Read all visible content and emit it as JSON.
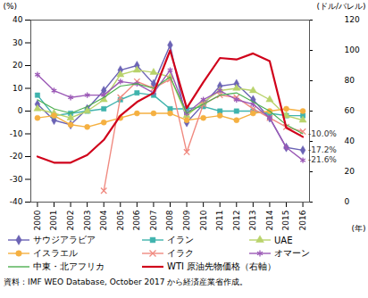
{
  "chart_data": {
    "type": "line",
    "x": [
      2000,
      2001,
      2002,
      2003,
      2004,
      2005,
      2006,
      2007,
      2008,
      2009,
      2010,
      2011,
      2012,
      2013,
      2014,
      2015,
      2016
    ],
    "xlim": [
      1999.6,
      2016.4
    ],
    "xticks": [
      2000,
      2001,
      2002,
      2003,
      2004,
      2005,
      2006,
      2007,
      2008,
      2009,
      2010,
      2011,
      2012,
      2013,
      2014,
      2015,
      2016
    ],
    "xlabel": "(年)",
    "ylabel": "(%)",
    "ylim": [
      -40,
      40
    ],
    "yticks": [
      -40,
      -30,
      -20,
      -10,
      0,
      10,
      20,
      30,
      40
    ],
    "y2label": "(ドル/バレル)",
    "y2lim": [
      0,
      120
    ],
    "y2ticks": [
      0,
      20,
      40,
      60,
      80,
      100,
      120
    ],
    "legend": "bottom",
    "series": [
      {
        "name": "サウジアラビア",
        "color": "#6b63b5",
        "marker": "diamond",
        "line_style": "solid",
        "values": [
          3,
          -4,
          -6,
          1,
          9,
          18,
          20,
          12,
          29,
          -5,
          3,
          11,
          12,
          5,
          -3,
          -16,
          -17.2
        ]
      },
      {
        "name": "イラン",
        "color": "#3fb3ad",
        "marker": "square",
        "line_style": "solid",
        "values": [
          7,
          -2,
          -1,
          0,
          1,
          5,
          8,
          7,
          1,
          1,
          2,
          0,
          0,
          0,
          -1,
          -2,
          -2
        ]
      },
      {
        "name": "UAE",
        "color": "#b9d36b",
        "marker": "triangle",
        "line_style": "solid",
        "values": [
          1,
          -1,
          -3,
          0,
          5,
          16,
          18,
          17,
          15,
          -2,
          4,
          9,
          10,
          9,
          5,
          -2,
          -4
        ]
      },
      {
        "name": "イスラエル",
        "color": "#f5b041",
        "marker": "circle",
        "line_style": "solid",
        "values": [
          -3,
          -2,
          -6,
          -7,
          -5,
          -3,
          -1,
          -1,
          -1,
          -4,
          -3,
          -2,
          -4,
          -1,
          0,
          1,
          0
        ]
      },
      {
        "name": "イラク",
        "color": "#f08a80",
        "marker": "times",
        "line_style": "solid",
        "values": [
          null,
          null,
          null,
          null,
          -35,
          6,
          13,
          10,
          14,
          -18,
          3,
          7,
          6,
          1,
          -3,
          -7,
          -9
        ]
      },
      {
        "name": "オマーン",
        "color": "#9b59b6",
        "marker": "asterisk",
        "line_style": "solid",
        "values": [
          16,
          9,
          6,
          7,
          7,
          13,
          12,
          8,
          18,
          -1,
          5,
          9,
          5,
          3,
          -3,
          -16,
          -21.6
        ]
      },
      {
        "name": "中東・北アフリカ",
        "color": "#4caf50",
        "marker": "none",
        "line_style": "solid",
        "values": [
          5,
          1,
          -1,
          2,
          6,
          11,
          12,
          10,
          15,
          -1,
          3,
          7,
          8,
          4,
          0,
          -6,
          -10.0
        ]
      },
      {
        "name": "WTI 原油先物価格（右軸）",
        "color": "#d0021b",
        "marker": "none",
        "line_style": "solid",
        "axis": "y2",
        "values": [
          30,
          26,
          26,
          31,
          41,
          57,
          66,
          72,
          100,
          62,
          79,
          95,
          94,
          98,
          93,
          49,
          43
        ]
      }
    ],
    "annotations": [
      {
        "text": "-10.0%",
        "x": 2016,
        "y": -10.0
      },
      {
        "text": "-17.2%",
        "x": 2016,
        "y": -17.2
      },
      {
        "text": "-21.6%",
        "x": 2016,
        "y": -21.6
      }
    ],
    "caption": "資料：IMF WEO Database, October 2017 から経済産業省作成。"
  }
}
